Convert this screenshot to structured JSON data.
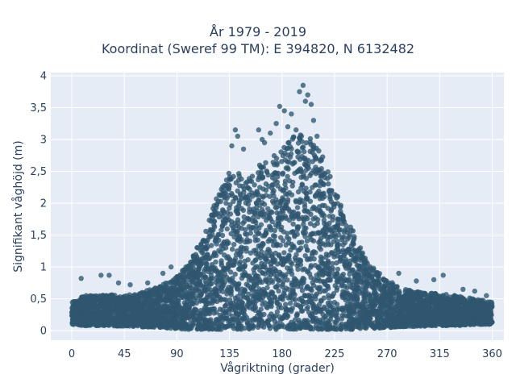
{
  "chart_data": {
    "type": "scatter",
    "title": "År 1979 - 2019",
    "subtitle": "Koordinat (Sweref 99 TM): E 394820, N 6132482",
    "xlabel": "Vågriktning (grader)",
    "ylabel": "Signifikant våghöjd (m)",
    "xlim": [
      -18,
      370
    ],
    "ylim": [
      -0.15,
      4.05
    ],
    "x_ticks": [
      0,
      45,
      90,
      135,
      180,
      225,
      270,
      315,
      360
    ],
    "x_tick_labels": [
      "0",
      "45",
      "90",
      "135",
      "180",
      "225",
      "270",
      "315",
      "360"
    ],
    "y_ticks": [
      0,
      0.5,
      1,
      1.5,
      2,
      2.5,
      3,
      3.5,
      4
    ],
    "y_tick_labels": [
      "0",
      "0,5",
      "1",
      "1,5",
      "2",
      "2,5",
      "3",
      "3,5",
      "4"
    ],
    "grid": true,
    "legend": "none",
    "marker_color": "#2f5670",
    "background_color": "#e5ecf6",
    "envelope": {
      "x": [
        0,
        10,
        20,
        30,
        45,
        60,
        75,
        90,
        100,
        110,
        120,
        130,
        135,
        140,
        150,
        160,
        170,
        180,
        190,
        200,
        210,
        220,
        230,
        240,
        250,
        260,
        270,
        285,
        300,
        315,
        330,
        345,
        360
      ],
      "upper": [
        0.45,
        0.55,
        0.55,
        0.58,
        0.55,
        0.6,
        0.7,
        0.85,
        1.05,
        1.4,
        1.9,
        2.35,
        2.6,
        2.5,
        2.4,
        2.6,
        2.7,
        2.85,
        3.05,
        3.1,
        2.95,
        2.5,
        2.0,
        1.6,
        1.2,
        0.95,
        0.8,
        0.65,
        0.6,
        0.58,
        0.55,
        0.5,
        0.45
      ],
      "lower": [
        0.1,
        0.08,
        0.08,
        0.08,
        0.07,
        0.06,
        0.05,
        0.03,
        0.02,
        0.02,
        0.02,
        0.02,
        0.02,
        0.02,
        0.02,
        0.02,
        0.02,
        0.02,
        0.02,
        0.02,
        0.02,
        0.02,
        0.02,
        0.02,
        0.03,
        0.04,
        0.05,
        0.06,
        0.07,
        0.08,
        0.08,
        0.1,
        0.1
      ]
    },
    "outliers": [
      {
        "x": 198,
        "y": 3.85
      },
      {
        "x": 195,
        "y": 3.75
      },
      {
        "x": 202,
        "y": 3.7
      },
      {
        "x": 200,
        "y": 3.6
      },
      {
        "x": 205,
        "y": 3.55
      },
      {
        "x": 178,
        "y": 3.52
      },
      {
        "x": 182,
        "y": 3.45
      },
      {
        "x": 188,
        "y": 3.4
      },
      {
        "x": 207,
        "y": 3.3
      },
      {
        "x": 185,
        "y": 3.2
      },
      {
        "x": 175,
        "y": 3.25
      },
      {
        "x": 192,
        "y": 3.15
      },
      {
        "x": 170,
        "y": 3.1
      },
      {
        "x": 210,
        "y": 3.05
      },
      {
        "x": 140,
        "y": 3.15
      },
      {
        "x": 142,
        "y": 3.05
      },
      {
        "x": 160,
        "y": 3.15
      },
      {
        "x": 163,
        "y": 3.0
      },
      {
        "x": 137,
        "y": 2.9
      },
      {
        "x": 147,
        "y": 2.85
      },
      {
        "x": 165,
        "y": 2.95
      },
      {
        "x": 8,
        "y": 0.82
      },
      {
        "x": 25,
        "y": 0.87
      },
      {
        "x": 32,
        "y": 0.87
      },
      {
        "x": 40,
        "y": 0.75
      },
      {
        "x": 50,
        "y": 0.72
      },
      {
        "x": 65,
        "y": 0.75
      },
      {
        "x": 78,
        "y": 0.9
      },
      {
        "x": 85,
        "y": 1.0
      },
      {
        "x": 280,
        "y": 0.9
      },
      {
        "x": 295,
        "y": 0.78
      },
      {
        "x": 310,
        "y": 0.8
      },
      {
        "x": 318,
        "y": 0.87
      },
      {
        "x": 335,
        "y": 0.65
      },
      {
        "x": 345,
        "y": 0.62
      },
      {
        "x": 355,
        "y": 0.55
      },
      {
        "x": 358,
        "y": 0.45
      }
    ]
  }
}
